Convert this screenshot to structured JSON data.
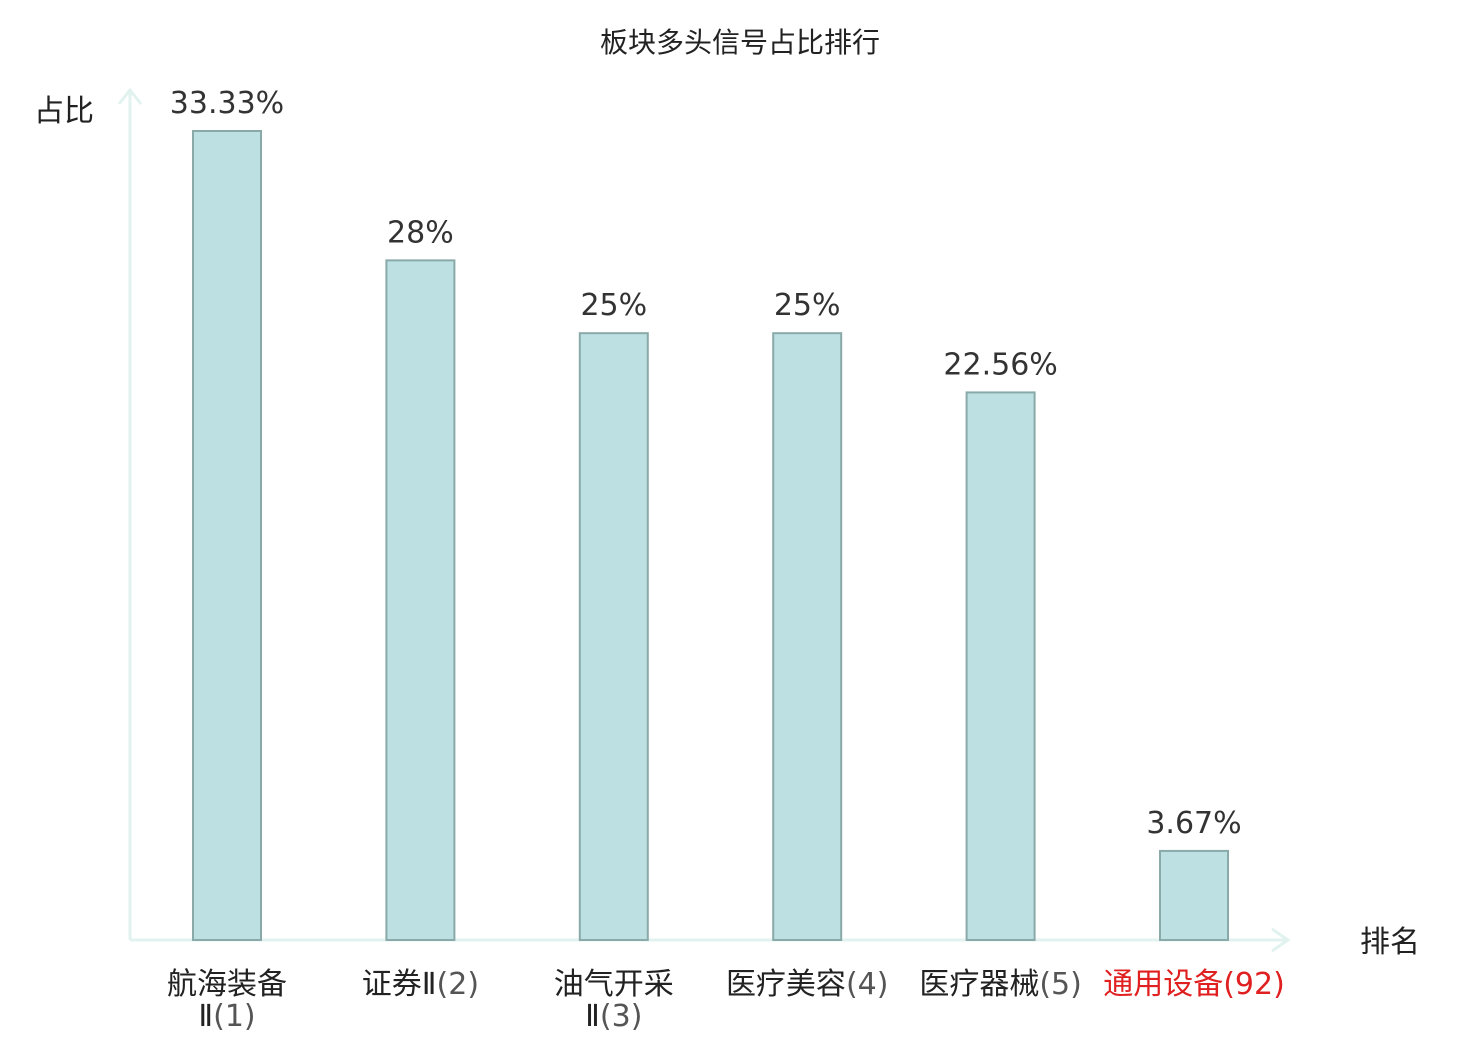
{
  "chart_data": {
    "type": "bar",
    "title": "板块多头信号占比排行",
    "xlabel": "排名",
    "ylabel": "占比",
    "ylim": [
      0,
      35
    ],
    "grid": false,
    "legend": "none",
    "categories": [
      {
        "name": "航海装备Ⅱ",
        "rank": "(1)",
        "highlight": false
      },
      {
        "name": "证券Ⅱ",
        "rank": "(2)",
        "highlight": false
      },
      {
        "name": "油气开采Ⅱ",
        "rank": "(3)",
        "highlight": false
      },
      {
        "name": "医疗美容",
        "rank": "(4)",
        "highlight": false
      },
      {
        "name": "医疗器械",
        "rank": "(5)",
        "highlight": false
      },
      {
        "name": "通用设备",
        "rank": "(92)",
        "highlight": true
      }
    ],
    "values": [
      33.33,
      28,
      25,
      25,
      22.56,
      3.67
    ],
    "value_labels": [
      "33.33%",
      "28%",
      "25%",
      "25%",
      "22.56%",
      "3.67%"
    ],
    "colors": {
      "bar_fill": "#bde0e3",
      "bar_stroke": "#8aa9a9",
      "axis": "#e2f3ef",
      "highlight_text": "#e02020"
    }
  }
}
